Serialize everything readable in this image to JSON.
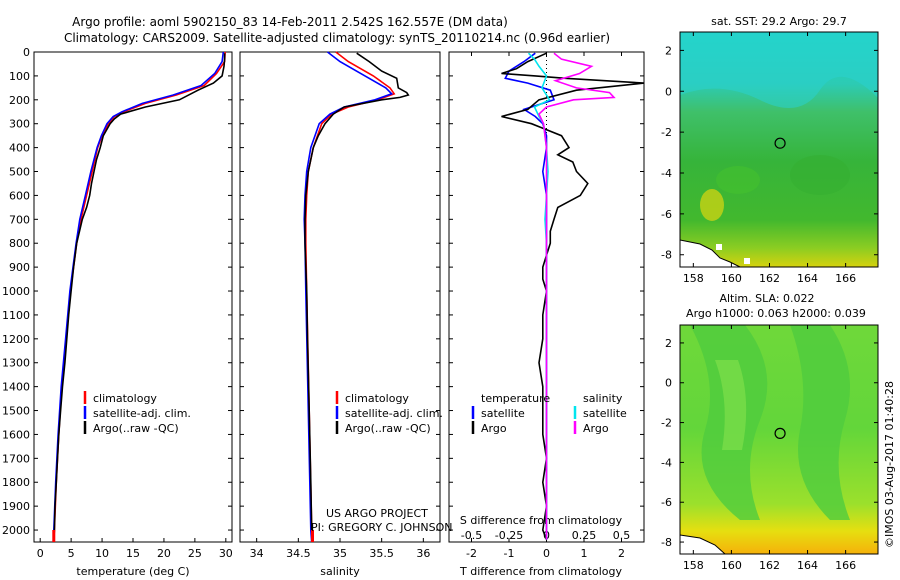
{
  "title": {
    "line1": "Argo profile: aoml 5902150_83 14-Feb-2011 2.542S 162.557E (DM data)",
    "line2": "Climatology: CARS2009. Satellite-adjusted climatology: synTS_20110214.nc (0.96d earlier)"
  },
  "colors": {
    "climatology": "#ff0000",
    "satellite": "#0000ff",
    "argo": "#000000",
    "sal_satellite": "#00e5ee",
    "sal_argo": "#ff00ff"
  },
  "depth_axis": {
    "ylim": [
      0,
      2050
    ],
    "ticks": [
      0,
      100,
      200,
      300,
      400,
      500,
      600,
      700,
      800,
      900,
      1000,
      1100,
      1200,
      1300,
      1400,
      1500,
      1600,
      1700,
      1800,
      1900,
      2000
    ]
  },
  "chart_data": [
    {
      "type": "line",
      "id": "temperature",
      "xlabel": "temperature (deg C)",
      "xlim": [
        -1,
        31
      ],
      "xticks": [
        0,
        5,
        10,
        15,
        20,
        25,
        30
      ],
      "ylim": [
        0,
        2050
      ],
      "legend": [
        "climatology",
        "satellite-adj. clim.",
        "Argo(..raw -QC)"
      ],
      "series": [
        {
          "name": "climatology",
          "color": "#ff0000",
          "depth": [
            0,
            40,
            90,
            140,
            180,
            215,
            250,
            270,
            300,
            350,
            400,
            500,
            600,
            700,
            800,
            1000,
            1200,
            1400,
            1600,
            1800,
            2000,
            2050
          ],
          "values": [
            29.9,
            29.8,
            28.5,
            26.5,
            22.0,
            17.0,
            13.5,
            12.0,
            11.0,
            10.0,
            9.3,
            8.4,
            7.5,
            6.6,
            5.9,
            4.9,
            4.2,
            3.5,
            3.0,
            2.6,
            2.3,
            2.2
          ]
        },
        {
          "name": "satellite-adj. clim.",
          "color": "#0000ff",
          "depth": [
            0,
            40,
            90,
            140,
            180,
            215,
            250,
            270,
            300,
            350,
            400,
            500,
            600,
            700,
            800,
            1000,
            1200,
            1400,
            1600,
            1800,
            2000,
            2050
          ],
          "values": [
            29.6,
            29.4,
            28.2,
            26.0,
            21.5,
            16.5,
            13.2,
            11.8,
            10.8,
            9.9,
            9.2,
            8.2,
            7.3,
            6.4,
            5.8,
            4.8,
            4.1,
            3.4,
            2.9,
            2.5,
            2.2,
            2.1
          ]
        },
        {
          "name": "Argo(..raw -QC)",
          "color": "#000000",
          "depth": [
            5,
            30,
            60,
            100,
            130,
            160,
            200,
            230,
            260,
            280,
            300,
            350,
            400,
            450,
            500,
            550,
            600,
            650,
            700,
            800,
            900,
            1000,
            1100,
            1200,
            1300,
            1400,
            1500,
            1600,
            1700,
            1800,
            1900,
            2000,
            2040
          ],
          "values": [
            29.8,
            29.8,
            29.7,
            29.4,
            28.0,
            25.5,
            22.5,
            17.0,
            13.0,
            12.0,
            11.3,
            10.2,
            9.7,
            9.1,
            8.7,
            8.3,
            8.0,
            7.5,
            6.8,
            5.9,
            5.4,
            5.0,
            4.6,
            4.3,
            4.0,
            3.6,
            3.3,
            3.0,
            2.8,
            2.6,
            2.4,
            2.3,
            2.2
          ]
        }
      ]
    },
    {
      "type": "line",
      "id": "salinity",
      "xlabel": "salinity",
      "xlim": [
        33.8,
        36.2
      ],
      "xticks": [
        34,
        34.5,
        35,
        35.5,
        36
      ],
      "ylim": [
        0,
        2050
      ],
      "legend": [
        "climatology",
        "satellite-adj. clim.",
        "Argo(..raw -QC)"
      ],
      "series": [
        {
          "name": "climatology",
          "color": "#ff0000",
          "depth": [
            0,
            40,
            100,
            150,
            175,
            200,
            230,
            260,
            300,
            400,
            500,
            600,
            700,
            800,
            1000,
            1500,
            2000,
            2050
          ],
          "values": [
            34.95,
            35.1,
            35.4,
            35.6,
            35.65,
            35.45,
            35.1,
            34.9,
            34.78,
            34.68,
            34.62,
            34.6,
            34.59,
            34.59,
            34.6,
            34.63,
            34.66,
            34.67
          ]
        },
        {
          "name": "satellite-adj. clim.",
          "color": "#0000ff",
          "depth": [
            0,
            40,
            100,
            150,
            175,
            200,
            230,
            260,
            300,
            400,
            500,
            600,
            700,
            800,
            1000,
            1500,
            2000,
            2050
          ],
          "values": [
            34.85,
            35.0,
            35.3,
            35.55,
            35.62,
            35.42,
            35.05,
            34.88,
            34.75,
            34.65,
            34.6,
            34.58,
            34.57,
            34.58,
            34.59,
            34.62,
            34.65,
            34.66
          ]
        },
        {
          "name": "Argo(..raw -QC)",
          "color": "#000000",
          "depth": [
            5,
            40,
            80,
            110,
            150,
            170,
            180,
            190,
            200,
            230,
            260,
            300,
            350,
            400,
            500,
            600,
            700,
            800,
            900,
            1000,
            1200,
            1500,
            1800,
            2000,
            2040
          ],
          "values": [
            35.2,
            35.35,
            35.5,
            35.68,
            35.7,
            35.8,
            35.82,
            35.72,
            35.5,
            35.05,
            34.92,
            34.82,
            34.74,
            34.68,
            34.62,
            34.59,
            34.58,
            34.58,
            34.59,
            34.6,
            34.61,
            34.63,
            34.65,
            34.66,
            34.67
          ]
        }
      ],
      "annotations": [
        "US ARGO PROJECT",
        "PI: GREGORY C. JOHNSON"
      ]
    },
    {
      "type": "line",
      "id": "difference",
      "xlabel_t": "T difference from climatology",
      "xlabel_s": "S difference from climatology",
      "xlim_t": [
        -2.6,
        2.6
      ],
      "xticks_t": [
        -2,
        -1,
        0,
        1,
        2
      ],
      "xlim_s": [
        -0.65,
        0.65
      ],
      "xticks_s": [
        -0.5,
        -0.25,
        0,
        0.25,
        0.5
      ],
      "xticks_s_labels": [
        "-0.5",
        "-0.25",
        "0",
        "0.25",
        "0.5"
      ],
      "ylim": [
        0,
        2050
      ],
      "legend_headers": [
        "temperature",
        "salinity"
      ],
      "legend": [
        "satellite",
        "Argo",
        "satellite",
        "Argo"
      ],
      "series": [
        {
          "name": "T satellite",
          "color": "#0000ff",
          "axis": "t",
          "depth": [
            5,
            40,
            80,
            110,
            130,
            160,
            200,
            240,
            270,
            300,
            350,
            400,
            500,
            600,
            700,
            800,
            1000,
            1500,
            2000,
            2040
          ],
          "values": [
            -0.3,
            -0.6,
            -1.0,
            -1.1,
            -0.5,
            0.1,
            0.2,
            -0.6,
            -0.3,
            -0.1,
            0.0,
            0.0,
            -0.1,
            0.0,
            0.0,
            0.0,
            0.0,
            0.0,
            0.0,
            0.0
          ]
        },
        {
          "name": "T Argo",
          "color": "#000000",
          "axis": "t",
          "depth": [
            5,
            40,
            70,
            90,
            100,
            110,
            130,
            160,
            200,
            240,
            270,
            300,
            350,
            400,
            430,
            460,
            500,
            550,
            600,
            650,
            700,
            750,
            800,
            850,
            900,
            950,
            1000,
            1100,
            1200,
            1300,
            1400,
            1500,
            1600,
            1700,
            1800,
            1900,
            2000,
            2040
          ],
          "values": [
            0.0,
            -0.5,
            -0.8,
            -1.2,
            -0.3,
            0.5,
            2.6,
            0.8,
            -0.2,
            -0.5,
            -1.2,
            -0.4,
            0.4,
            0.6,
            0.3,
            0.7,
            0.8,
            1.1,
            0.9,
            0.3,
            0.2,
            0.1,
            0.1,
            0.0,
            -0.1,
            -0.1,
            0.0,
            -0.1,
            -0.1,
            -0.2,
            -0.1,
            -0.1,
            -0.1,
            0.0,
            -0.1,
            0.0,
            -0.1,
            0.0
          ]
        },
        {
          "name": "S satellite",
          "color": "#00e5ee",
          "axis": "s",
          "depth": [
            5,
            30,
            60,
            100,
            150,
            200,
            230,
            270,
            300,
            400,
            500,
            600,
            700,
            800,
            900,
            1000,
            1500,
            2000,
            2040
          ],
          "values": [
            -0.12,
            -0.08,
            -0.05,
            0.0,
            -0.03,
            0.02,
            -0.08,
            -0.05,
            -0.02,
            0.0,
            0.01,
            0.0,
            -0.01,
            0.0,
            0.0,
            0.0,
            0.0,
            0.0,
            0.0
          ]
        },
        {
          "name": "S Argo",
          "color": "#ff00ff",
          "axis": "s",
          "depth": [
            5,
            30,
            60,
            90,
            120,
            150,
            170,
            190,
            200,
            230,
            260,
            300,
            400,
            500,
            600,
            700,
            800,
            1000,
            1500,
            2000,
            2040
          ],
          "values": [
            0.05,
            0.1,
            0.3,
            0.22,
            0.06,
            0.2,
            0.42,
            0.45,
            0.18,
            0.0,
            -0.05,
            -0.02,
            0.0,
            0.0,
            0.0,
            0.0,
            0.0,
            0.0,
            0.0,
            0.0,
            0.0
          ]
        }
      ]
    },
    {
      "type": "heatmap",
      "id": "sst_map",
      "title": "sat. SST: 29.2  Argo: 29.7",
      "xlim": [
        157.3,
        167.7
      ],
      "xticks": [
        158,
        160,
        162,
        164,
        166
      ],
      "ylim": [
        -8.6,
        2.9
      ],
      "yticks": [
        2,
        0,
        -2,
        -4,
        -6,
        -8
      ],
      "float_position": {
        "lon": 162.557,
        "lat": -2.542
      }
    },
    {
      "type": "heatmap",
      "id": "sla_map",
      "title_line1": "Altim. SLA: 0.022",
      "title_line2": "Argo h1000: 0.063 h2000: 0.039",
      "xlim": [
        157.3,
        167.7
      ],
      "xticks": [
        158,
        160,
        162,
        164,
        166
      ],
      "ylim": [
        -8.6,
        2.9
      ],
      "yticks": [
        2,
        0,
        -2,
        -4,
        -6,
        -8
      ],
      "float_position": {
        "lon": 162.557,
        "lat": -2.542
      }
    }
  ],
  "credit": "©IMOS 03-Aug-2017 01:40:28"
}
